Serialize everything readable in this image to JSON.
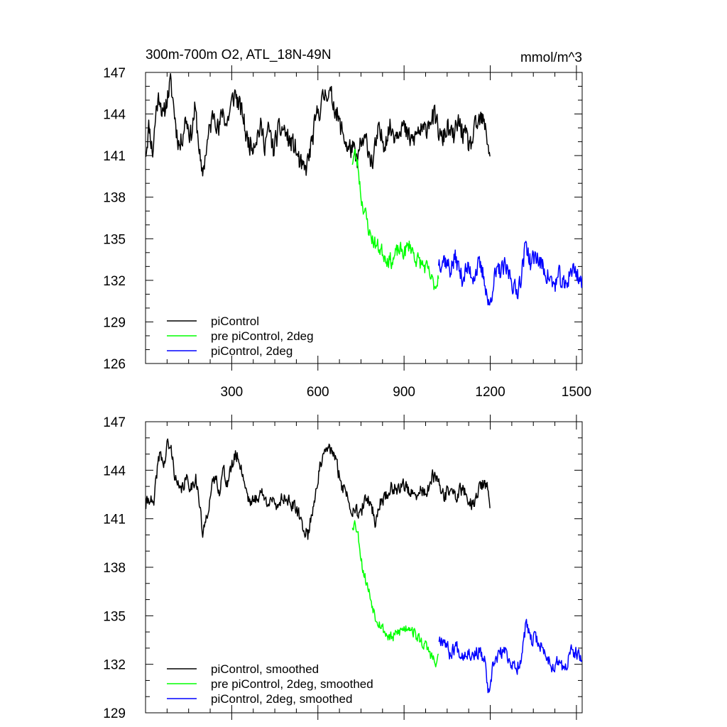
{
  "figure": {
    "title_left": "300m-700m O2, ATL_18N-49N",
    "title_right": "mmol/m^3"
  },
  "chart_data": [
    {
      "type": "line",
      "panel": "top",
      "xlim": [
        0,
        1520
      ],
      "ylim": [
        126,
        147
      ],
      "xticks": [
        300,
        600,
        900,
        1200,
        1500
      ],
      "yticks": [
        126,
        129,
        132,
        135,
        138,
        141,
        144,
        147
      ],
      "legend_position": "bottom-left",
      "series": [
        {
          "name": "piControl",
          "color": "#000000",
          "x_start": 1,
          "x_end": 1200,
          "anchors": [
            [
              1,
              141.3
            ],
            [
              12,
              143.2
            ],
            [
              25,
              141.2
            ],
            [
              38,
              144.6
            ],
            [
              50,
              145.4
            ],
            [
              62,
              143.5
            ],
            [
              72,
              144.9
            ],
            [
              86,
              146.2
            ],
            [
              95,
              145.1
            ],
            [
              108,
              142.8
            ],
            [
              120,
              141.6
            ],
            [
              140,
              143.8
            ],
            [
              158,
              142.4
            ],
            [
              172,
              144.4
            ],
            [
              185,
              142.0
            ],
            [
              196,
              139.2
            ],
            [
              210,
              141.4
            ],
            [
              225,
              143.0
            ],
            [
              240,
              144.4
            ],
            [
              255,
              142.6
            ],
            [
              268,
              144.4
            ],
            [
              282,
              143.2
            ],
            [
              298,
              144.6
            ],
            [
              312,
              145.6
            ],
            [
              322,
              144.8
            ],
            [
              340,
              143.8
            ],
            [
              352,
              142.2
            ],
            [
              370,
              141.8
            ],
            [
              385,
              142.4
            ],
            [
              400,
              143.0
            ],
            [
              415,
              142.0
            ],
            [
              430,
              142.8
            ],
            [
              445,
              141.4
            ],
            [
              460,
              142.6
            ],
            [
              480,
              143.0
            ],
            [
              500,
              142.0
            ],
            [
              520,
              141.6
            ],
            [
              540,
              140.2
            ],
            [
              555,
              139.8
            ],
            [
              570,
              141.0
            ],
            [
              585,
              142.6
            ],
            [
              600,
              144.2
            ],
            [
              615,
              144.8
            ],
            [
              630,
              145.8
            ],
            [
              645,
              145.2
            ],
            [
              660,
              144.6
            ],
            [
              675,
              143.2
            ],
            [
              690,
              142.5
            ],
            [
              705,
              141.4
            ],
            [
              720,
              141.6
            ],
            [
              735,
              140.4
            ],
            [
              750,
              141.8
            ],
            [
              770,
              142.0
            ],
            [
              790,
              140.4
            ],
            [
              810,
              142.6
            ],
            [
              830,
              142.0
            ],
            [
              850,
              143.0
            ],
            [
              870,
              142.6
            ],
            [
              890,
              143.4
            ],
            [
              910,
              142.4
            ],
            [
              930,
              142.0
            ],
            [
              950,
              142.8
            ],
            [
              970,
              142.6
            ],
            [
              990,
              143.8
            ],
            [
              1010,
              143.6
            ],
            [
              1030,
              142.0
            ],
            [
              1050,
              143.0
            ],
            [
              1070,
              142.2
            ],
            [
              1090,
              143.4
            ],
            [
              1110,
              142.4
            ],
            [
              1130,
              141.6
            ],
            [
              1150,
              143.0
            ],
            [
              1170,
              143.6
            ],
            [
              1185,
              142.8
            ],
            [
              1200,
              141.0
            ]
          ],
          "noise": 1.15,
          "seed": 11
        },
        {
          "name": "pre piControl, 2deg",
          "color": "#00ff00",
          "x_start": 720,
          "x_end": 1020,
          "anchors": [
            [
              720,
              140.6
            ],
            [
              728,
              141.2
            ],
            [
              740,
              140.2
            ],
            [
              752,
              137.8
            ],
            [
              765,
              136.8
            ],
            [
              780,
              135.4
            ],
            [
              800,
              134.6
            ],
            [
              820,
              134.2
            ],
            [
              840,
              133.6
            ],
            [
              860,
              133.4
            ],
            [
              880,
              134.2
            ],
            [
              900,
              134.0
            ],
            [
              920,
              134.6
            ],
            [
              940,
              133.6
            ],
            [
              960,
              133.2
            ],
            [
              980,
              132.8
            ],
            [
              1000,
              131.8
            ],
            [
              1012,
              131.6
            ],
            [
              1020,
              132.6
            ]
          ],
          "noise": 0.8,
          "seed": 23
        },
        {
          "name": "piControl, 2deg",
          "color": "#0000ff",
          "x_start": 1020,
          "x_end": 1520,
          "anchors": [
            [
              1020,
              133.4
            ],
            [
              1040,
              133.6
            ],
            [
              1060,
              132.8
            ],
            [
              1080,
              133.6
            ],
            [
              1100,
              132.2
            ],
            [
              1120,
              132.8
            ],
            [
              1140,
              132.4
            ],
            [
              1160,
              133.0
            ],
            [
              1180,
              132.2
            ],
            [
              1197,
              129.8
            ],
            [
              1210,
              132.0
            ],
            [
              1230,
              132.6
            ],
            [
              1250,
              132.8
            ],
            [
              1270,
              132.4
            ],
            [
              1290,
              131.0
            ],
            [
              1310,
              132.6
            ],
            [
              1325,
              134.8
            ],
            [
              1340,
              133.2
            ],
            [
              1360,
              133.8
            ],
            [
              1380,
              133.0
            ],
            [
              1400,
              132.4
            ],
            [
              1420,
              131.6
            ],
            [
              1440,
              132.2
            ],
            [
              1460,
              131.4
            ],
            [
              1480,
              132.8
            ],
            [
              1500,
              132.6
            ],
            [
              1520,
              131.8
            ]
          ],
          "noise": 1.05,
          "seed": 37
        }
      ]
    },
    {
      "type": "line",
      "panel": "bottom",
      "xlim": [
        0,
        1520
      ],
      "ylim": [
        129,
        147
      ],
      "xticks": [
        300,
        600,
        900,
        1200,
        1500
      ],
      "yticks": [
        129,
        132,
        135,
        138,
        141,
        144,
        147
      ],
      "legend_position": "bottom-left",
      "series": [
        {
          "name": "piControl, smoothed",
          "color": "#000000",
          "x_start": 1,
          "x_end": 1200,
          "anchors": [
            [
              1,
              141.8
            ],
            [
              15,
              142.4
            ],
            [
              28,
              141.6
            ],
            [
              40,
              144.0
            ],
            [
              52,
              145.2
            ],
            [
              64,
              144.2
            ],
            [
              76,
              145.6
            ],
            [
              90,
              145.2
            ],
            [
              105,
              143.4
            ],
            [
              120,
              142.6
            ],
            [
              140,
              143.4
            ],
            [
              160,
              143.0
            ],
            [
              175,
              143.6
            ],
            [
              190,
              141.6
            ],
            [
              200,
              139.8
            ],
            [
              212,
              141.2
            ],
            [
              228,
              142.6
            ],
            [
              242,
              143.6
            ],
            [
              258,
              142.8
            ],
            [
              270,
              144.0
            ],
            [
              285,
              143.2
            ],
            [
              300,
              144.2
            ],
            [
              315,
              145.0
            ],
            [
              330,
              144.4
            ],
            [
              345,
              143.2
            ],
            [
              360,
              142.2
            ],
            [
              375,
              142.0
            ],
            [
              390,
              142.4
            ],
            [
              405,
              142.6
            ],
            [
              420,
              142.0
            ],
            [
              435,
              142.4
            ],
            [
              450,
              141.6
            ],
            [
              470,
              142.2
            ],
            [
              490,
              142.4
            ],
            [
              510,
              141.8
            ],
            [
              530,
              141.4
            ],
            [
              550,
              140.4
            ],
            [
              565,
              140.0
            ],
            [
              580,
              141.4
            ],
            [
              595,
              143.0
            ],
            [
              610,
              144.4
            ],
            [
              625,
              145.0
            ],
            [
              640,
              145.4
            ],
            [
              655,
              145.0
            ],
            [
              670,
              144.0
            ],
            [
              685,
              143.0
            ],
            [
              700,
              142.6
            ],
            [
              715,
              141.6
            ],
            [
              730,
              141.8
            ],
            [
              745,
              141.0
            ],
            [
              760,
              142.0
            ],
            [
              780,
              142.2
            ],
            [
              800,
              140.8
            ],
            [
              820,
              142.2
            ],
            [
              840,
              142.4
            ],
            [
              860,
              143.0
            ],
            [
              880,
              142.8
            ],
            [
              900,
              143.2
            ],
            [
              920,
              142.6
            ],
            [
              940,
              142.2
            ],
            [
              960,
              142.8
            ],
            [
              980,
              142.6
            ],
            [
              1000,
              143.6
            ],
            [
              1020,
              143.2
            ],
            [
              1040,
              142.4
            ],
            [
              1060,
              142.8
            ],
            [
              1080,
              142.4
            ],
            [
              1100,
              142.8
            ],
            [
              1120,
              142.4
            ],
            [
              1140,
              141.8
            ],
            [
              1160,
              142.8
            ],
            [
              1175,
              143.2
            ],
            [
              1190,
              142.8
            ],
            [
              1200,
              141.8
            ]
          ],
          "noise": 0.6,
          "seed": 41
        },
        {
          "name": "pre piControl, 2deg, smoothed",
          "color": "#00ff00",
          "x_start": 720,
          "x_end": 1020,
          "anchors": [
            [
              720,
              140.6
            ],
            [
              730,
              140.8
            ],
            [
              742,
              139.8
            ],
            [
              755,
              138.0
            ],
            [
              770,
              137.0
            ],
            [
              785,
              136.0
            ],
            [
              800,
              135.0
            ],
            [
              820,
              134.4
            ],
            [
              840,
              133.8
            ],
            [
              860,
              133.6
            ],
            [
              880,
              134.0
            ],
            [
              900,
              134.2
            ],
            [
              920,
              134.4
            ],
            [
              940,
              133.8
            ],
            [
              960,
              133.4
            ],
            [
              980,
              133.0
            ],
            [
              1000,
              132.4
            ],
            [
              1012,
              131.8
            ],
            [
              1020,
              132.8
            ]
          ],
          "noise": 0.5,
          "seed": 53
        },
        {
          "name": "piControl, 2deg, smoothed",
          "color": "#0000ff",
          "x_start": 1020,
          "x_end": 1520,
          "anchors": [
            [
              1020,
              133.6
            ],
            [
              1040,
              133.6
            ],
            [
              1060,
              132.6
            ],
            [
              1080,
              133.2
            ],
            [
              1100,
              132.6
            ],
            [
              1120,
              132.8
            ],
            [
              1140,
              132.6
            ],
            [
              1160,
              132.8
            ],
            [
              1180,
              132.2
            ],
            [
              1197,
              129.8
            ],
            [
              1210,
              132.0
            ],
            [
              1230,
              132.6
            ],
            [
              1250,
              132.8
            ],
            [
              1270,
              132.2
            ],
            [
              1290,
              131.6
            ],
            [
              1310,
              132.6
            ],
            [
              1325,
              134.6
            ],
            [
              1340,
              133.4
            ],
            [
              1360,
              133.6
            ],
            [
              1380,
              133.0
            ],
            [
              1400,
              132.4
            ],
            [
              1420,
              131.8
            ],
            [
              1440,
              132.2
            ],
            [
              1460,
              131.6
            ],
            [
              1480,
              132.8
            ],
            [
              1500,
              132.6
            ],
            [
              1520,
              132.2
            ]
          ],
          "noise": 0.6,
          "seed": 67
        }
      ]
    }
  ]
}
